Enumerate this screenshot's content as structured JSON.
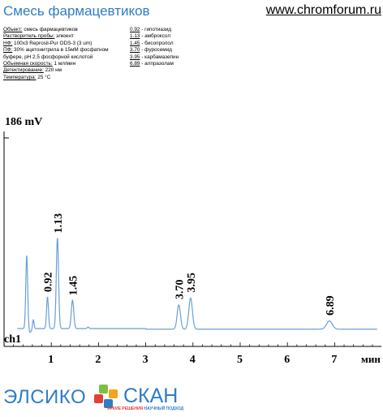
{
  "header": {
    "title": "Смесь фармацевтиков",
    "site": "www.chromforum.ru"
  },
  "info": [
    {
      "label": "Объект:",
      "value": " смесь фармацевтиков"
    },
    {
      "label": "Растворитель пробы:",
      "value": " элюент"
    },
    {
      "label": "НФ:",
      "value": " 100x3 Reprosil-Pur ODS-3  (3 um)"
    },
    {
      "label": "ПФ:",
      "value": " 30% ацетонитрила в 15мМ фосфатном"
    },
    {
      "label": "",
      "value": "буфере, pH 2.5 фосфорной кислотой"
    },
    {
      "label": "Объемная скорость:",
      "value": " 1 мл/мин"
    },
    {
      "label": "Детектирование:",
      "value": " 220 нм"
    },
    {
      "label": "Температура:",
      "value": " 25 °C"
    }
  ],
  "peaks_legend": [
    {
      "time": "0.92",
      "name": " - гипотиазид"
    },
    {
      "time": "1.13",
      "name": " - амброксол"
    },
    {
      "time": "1.45",
      "name": " - бисопролол"
    },
    {
      "time": "3.70",
      "name": " - фуросемид"
    },
    {
      "time": "3.95",
      "name": " - карбамазепин"
    },
    {
      "time": "6.89",
      "name": " - алпразолам"
    }
  ],
  "chart_data": {
    "type": "line",
    "ylabel_top": "186 mV",
    "channel_label": "ch1",
    "xlabel": "мин",
    "x_ticks": [
      "1",
      "2",
      "3",
      "4",
      "5",
      "6",
      "7"
    ],
    "xlim": [
      0,
      7.9
    ],
    "ylim": [
      -8,
      200
    ],
    "baseline": 0,
    "peaks": [
      {
        "x": 0.48,
        "y": 150,
        "w": 0.02,
        "label": ""
      },
      {
        "x": 0.62,
        "y": 18,
        "w": 0.015,
        "label": ""
      },
      {
        "x": 0.92,
        "y": 65,
        "w": 0.02,
        "label": "0.92"
      },
      {
        "x": 1.13,
        "y": 186,
        "w": 0.024,
        "label": "1.13"
      },
      {
        "x": 1.45,
        "y": 58,
        "w": 0.026,
        "label": "1.45"
      },
      {
        "x": 1.78,
        "y": 3,
        "w": 0.02,
        "label": ""
      },
      {
        "x": 3.7,
        "y": 50,
        "w": 0.035,
        "label": "3.70"
      },
      {
        "x": 3.95,
        "y": 64,
        "w": 0.038,
        "label": "3.95"
      },
      {
        "x": 6.89,
        "y": 17,
        "w": 0.06,
        "label": "6.89"
      }
    ],
    "dips": [
      {
        "x": 0.55,
        "y": -8,
        "w": 0.025
      }
    ],
    "line_color": "#6a9fd8"
  },
  "footer": {
    "logo1": "ЭЛСИКО",
    "logo2": "СКАН",
    "logo2_tag_a": "ЯРКИЕ РЕШЕНИЯ",
    "logo2_tag_b": "НАУЧНЫЙ ПОДХОД"
  }
}
